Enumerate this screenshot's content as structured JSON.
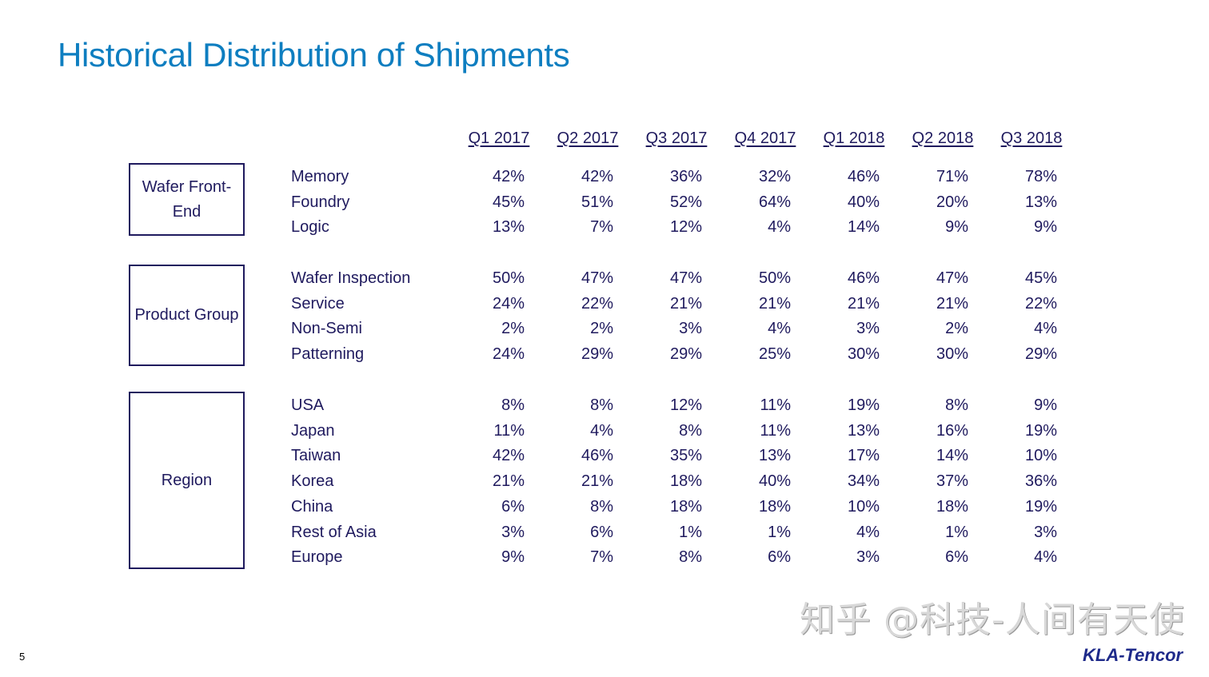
{
  "title": "Historical Distribution of Shipments",
  "columns": [
    "Q1 2017",
    "Q2 2017",
    "Q3 2017",
    "Q4 2017",
    "Q1 2018",
    "Q2 2018",
    "Q3 2018"
  ],
  "groups": [
    {
      "label": "Wafer Front-End",
      "rows": [
        {
          "label": "Memory",
          "values": [
            "42%",
            "42%",
            "36%",
            "32%",
            "46%",
            "71%",
            "78%"
          ]
        },
        {
          "label": "Foundry",
          "values": [
            "45%",
            "51%",
            "52%",
            "64%",
            "40%",
            "20%",
            "13%"
          ]
        },
        {
          "label": "Logic",
          "values": [
            "13%",
            "7%",
            "12%",
            "4%",
            "14%",
            "9%",
            "9%"
          ]
        }
      ]
    },
    {
      "label": "Product Group",
      "rows": [
        {
          "label": "Wafer Inspection",
          "values": [
            "50%",
            "47%",
            "47%",
            "50%",
            "46%",
            "47%",
            "45%"
          ]
        },
        {
          "label": "Service",
          "values": [
            "24%",
            "22%",
            "21%",
            "21%",
            "21%",
            "21%",
            "22%"
          ]
        },
        {
          "label": "Non-Semi",
          "values": [
            "2%",
            "2%",
            "3%",
            "4%",
            "3%",
            "2%",
            "4%"
          ]
        },
        {
          "label": "Patterning",
          "values": [
            "24%",
            "29%",
            "29%",
            "25%",
            "30%",
            "30%",
            "29%"
          ]
        }
      ]
    },
    {
      "label": "Region",
      "rows": [
        {
          "label": "USA",
          "values": [
            "8%",
            "8%",
            "12%",
            "11%",
            "19%",
            "8%",
            "9%"
          ]
        },
        {
          "label": "Japan",
          "values": [
            "11%",
            "4%",
            "8%",
            "11%",
            "13%",
            "16%",
            "19%"
          ]
        },
        {
          "label": "Taiwan",
          "values": [
            "42%",
            "46%",
            "35%",
            "13%",
            "17%",
            "14%",
            "10%"
          ]
        },
        {
          "label": "Korea",
          "values": [
            "21%",
            "21%",
            "18%",
            "40%",
            "34%",
            "37%",
            "36%"
          ]
        },
        {
          "label": "China",
          "values": [
            "6%",
            "8%",
            "18%",
            "18%",
            "10%",
            "18%",
            "19%"
          ]
        },
        {
          "label": "Rest of Asia",
          "values": [
            "3%",
            "6%",
            "1%",
            "1%",
            "4%",
            "1%",
            "3%"
          ]
        },
        {
          "label": "Europe",
          "values": [
            "9%",
            "7%",
            "8%",
            "6%",
            "3%",
            "6%",
            "4%"
          ]
        }
      ]
    }
  ],
  "page_number": "5",
  "watermark": "知乎 @科技-人间有天使",
  "logo": "KLA-Tencor",
  "colors": {
    "title": "#0e7ec0",
    "text": "#1f1a5e"
  }
}
